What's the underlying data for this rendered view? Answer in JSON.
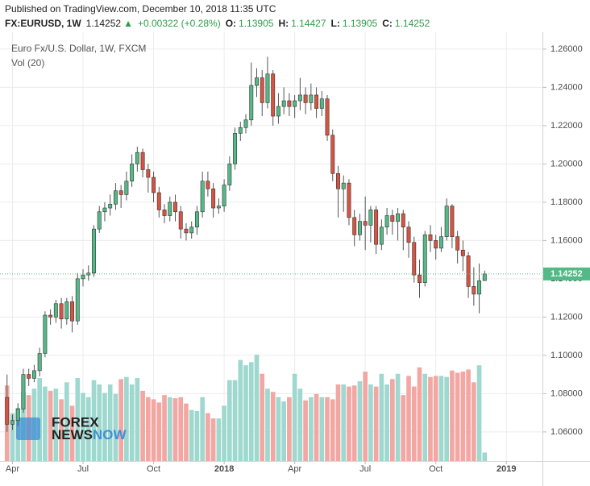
{
  "header": {
    "published": "Published on TradingView.com, December 10, 2018 11:35 UTC",
    "quote": [
      {
        "text": "FX:EURUSD, 1W",
        "bold": true
      },
      {
        "text": "1.14252"
      },
      {
        "text": "▲",
        "color": "#2e9e4a"
      },
      {
        "text": "+0.00322 (+0.28%)",
        "color": "#2e9e4a"
      },
      {
        "text": "O:",
        "bold": true
      },
      {
        "text": "1.13905",
        "color": "#2e9e4a"
      },
      {
        "text": "H:",
        "bold": true
      },
      {
        "text": "1.14427",
        "color": "#2e9e4a"
      },
      {
        "text": "L:",
        "bold": true
      },
      {
        "text": "1.13905",
        "color": "#2e9e4a"
      },
      {
        "text": "C:",
        "bold": true
      },
      {
        "text": "1.14252",
        "color": "#2e9e4a"
      }
    ]
  },
  "chart_data": {
    "type": "candlestick",
    "legend": [
      "Euro Fx/U.S. Dollar, 1W, FXCM",
      "Vol (20)"
    ],
    "watermark": {
      "top": "FOREX",
      "bottom_a": "NEWS",
      "bottom_b": "NOW"
    },
    "up_color": "#53b987",
    "down_color": "#d75442",
    "up_volume_color": "#9fd8cf",
    "down_volume_color": "#f2a7a3",
    "grid": true,
    "xlim": [
      -1.3,
      98.5
    ],
    "xticks": [
      {
        "value": 1,
        "label": "Apr"
      },
      {
        "value": 14,
        "label": "Jul"
      },
      {
        "value": 27,
        "label": "Oct"
      },
      {
        "value": 40,
        "label": "2018"
      },
      {
        "value": 53,
        "label": "Apr"
      },
      {
        "value": 66,
        "label": "Jul"
      },
      {
        "value": 79,
        "label": "Oct"
      },
      {
        "value": 92,
        "label": "2019"
      }
    ],
    "ylim": [
      1.0448,
      1.2688
    ],
    "yticks": [
      {
        "value": 1.06,
        "label": "1.06000"
      },
      {
        "value": 1.08,
        "label": "1.08000"
      },
      {
        "value": 1.1,
        "label": "1.10000"
      },
      {
        "value": 1.12,
        "label": "1.12000"
      },
      {
        "value": 1.14,
        "label": "1.14000"
      },
      {
        "value": 1.16,
        "label": "1.16000"
      },
      {
        "value": 1.18,
        "label": "1.18000"
      },
      {
        "value": 1.2,
        "label": "1.20000"
      },
      {
        "value": 1.22,
        "label": "1.22000"
      },
      {
        "value": 1.24,
        "label": "1.24000"
      },
      {
        "value": 1.26,
        "label": "1.26000"
      }
    ],
    "volume_lim": [
      0,
      403
    ],
    "last_price": 1.14252,
    "open": [
      1.078,
      1.064,
      1.066,
      1.072,
      1.09,
      1.088,
      1.092,
      1.101,
      1.121,
      1.12,
      1.127,
      1.119,
      1.128,
      1.118,
      1.14,
      1.142,
      1.143,
      1.166,
      1.175,
      1.177,
      1.179,
      1.186,
      1.184,
      1.191,
      1.2,
      1.206,
      1.197,
      1.193,
      1.185,
      1.176,
      1.173,
      1.18,
      1.175,
      1.166,
      1.164,
      1.167,
      1.175,
      1.191,
      1.187,
      1.177,
      1.178,
      1.189,
      1.2,
      1.216,
      1.219,
      1.223,
      1.241,
      1.245,
      1.232,
      1.247,
      1.225,
      1.23,
      1.233,
      1.23,
      1.233,
      1.236,
      1.232,
      1.236,
      1.229,
      1.234,
      1.215,
      1.195,
      1.187,
      1.19,
      1.172,
      1.163,
      1.17,
      1.168,
      1.176,
      1.158,
      1.167,
      1.173,
      1.17,
      1.174,
      1.167,
      1.159,
      1.142,
      1.138,
      1.163,
      1.16,
      1.156,
      1.162,
      1.178,
      1.162,
      1.155,
      1.152,
      1.136,
      1.132,
      1.13905
    ],
    "high": [
      1.09,
      1.069,
      1.075,
      1.093,
      1.093,
      1.095,
      1.104,
      1.123,
      1.124,
      1.129,
      1.13,
      1.13,
      1.131,
      1.143,
      1.145,
      1.147,
      1.168,
      1.178,
      1.18,
      1.184,
      1.19,
      1.189,
      1.196,
      1.205,
      1.209,
      1.208,
      1.2,
      1.196,
      1.188,
      1.179,
      1.183,
      1.184,
      1.178,
      1.169,
      1.17,
      1.178,
      1.196,
      1.196,
      1.19,
      1.182,
      1.192,
      1.204,
      1.219,
      1.222,
      1.226,
      1.253,
      1.25,
      1.249,
      1.256,
      1.249,
      1.237,
      1.24,
      1.237,
      1.236,
      1.245,
      1.24,
      1.242,
      1.24,
      1.238,
      1.236,
      1.218,
      1.199,
      1.194,
      1.192,
      1.176,
      1.174,
      1.183,
      1.178,
      1.178,
      1.171,
      1.177,
      1.176,
      1.177,
      1.176,
      1.17,
      1.162,
      1.15,
      1.165,
      1.168,
      1.163,
      1.167,
      1.182,
      1.179,
      1.165,
      1.16,
      1.154,
      1.146,
      1.148,
      1.14427
    ],
    "low": [
      1.06,
      1.061,
      1.063,
      1.07,
      1.084,
      1.086,
      1.089,
      1.099,
      1.116,
      1.117,
      1.114,
      1.116,
      1.112,
      1.116,
      1.136,
      1.139,
      1.141,
      1.164,
      1.17,
      1.173,
      1.176,
      1.177,
      1.181,
      1.188,
      1.196,
      1.193,
      1.185,
      1.18,
      1.172,
      1.169,
      1.17,
      1.17,
      1.161,
      1.16,
      1.161,
      1.163,
      1.172,
      1.183,
      1.172,
      1.174,
      1.175,
      1.186,
      1.197,
      1.212,
      1.216,
      1.22,
      1.235,
      1.225,
      1.229,
      1.22,
      1.221,
      1.226,
      1.225,
      1.224,
      1.228,
      1.226,
      1.228,
      1.224,
      1.225,
      1.212,
      1.191,
      1.172,
      1.175,
      1.168,
      1.157,
      1.16,
      1.155,
      1.159,
      1.153,
      1.155,
      1.163,
      1.163,
      1.16,
      1.155,
      1.151,
      1.138,
      1.13,
      1.136,
      1.154,
      1.15,
      1.154,
      1.16,
      1.156,
      1.148,
      1.144,
      1.13,
      1.126,
      1.122,
      1.13905
    ],
    "close": [
      1.064,
      1.066,
      1.072,
      1.09,
      1.088,
      1.092,
      1.101,
      1.121,
      1.12,
      1.127,
      1.119,
      1.128,
      1.118,
      1.14,
      1.142,
      1.143,
      1.166,
      1.175,
      1.177,
      1.179,
      1.186,
      1.184,
      1.191,
      1.2,
      1.206,
      1.197,
      1.193,
      1.185,
      1.176,
      1.173,
      1.18,
      1.175,
      1.166,
      1.164,
      1.167,
      1.175,
      1.191,
      1.187,
      1.177,
      1.178,
      1.189,
      1.2,
      1.216,
      1.219,
      1.223,
      1.241,
      1.245,
      1.232,
      1.247,
      1.225,
      1.23,
      1.233,
      1.23,
      1.233,
      1.236,
      1.232,
      1.236,
      1.229,
      1.234,
      1.215,
      1.195,
      1.187,
      1.19,
      1.172,
      1.163,
      1.17,
      1.168,
      1.176,
      1.158,
      1.167,
      1.173,
      1.17,
      1.174,
      1.167,
      1.159,
      1.142,
      1.138,
      1.163,
      1.16,
      1.156,
      1.162,
      1.178,
      1.162,
      1.155,
      1.152,
      1.136,
      1.132,
      1.139,
      1.14252
    ],
    "volume": [
      71,
      45,
      50,
      65,
      62,
      68,
      78,
      70,
      66,
      68,
      58,
      74,
      52,
      78,
      64,
      60,
      76,
      72,
      64,
      72,
      63,
      77,
      79,
      72,
      78,
      66,
      60,
      58,
      55,
      62,
      60,
      59,
      60,
      54,
      48,
      47,
      60,
      45,
      40,
      40,
      52,
      76,
      76,
      95,
      90,
      93,
      100,
      82,
      68,
      65,
      60,
      56,
      60,
      82,
      68,
      57,
      60,
      63,
      60,
      60,
      58,
      72,
      72,
      70,
      71,
      75,
      84,
      72,
      70,
      82,
      72,
      77,
      82,
      62,
      80,
      70,
      88,
      82,
      79,
      80,
      80,
      79,
      85,
      83,
      84,
      86,
      74,
      90,
      8
    ]
  }
}
